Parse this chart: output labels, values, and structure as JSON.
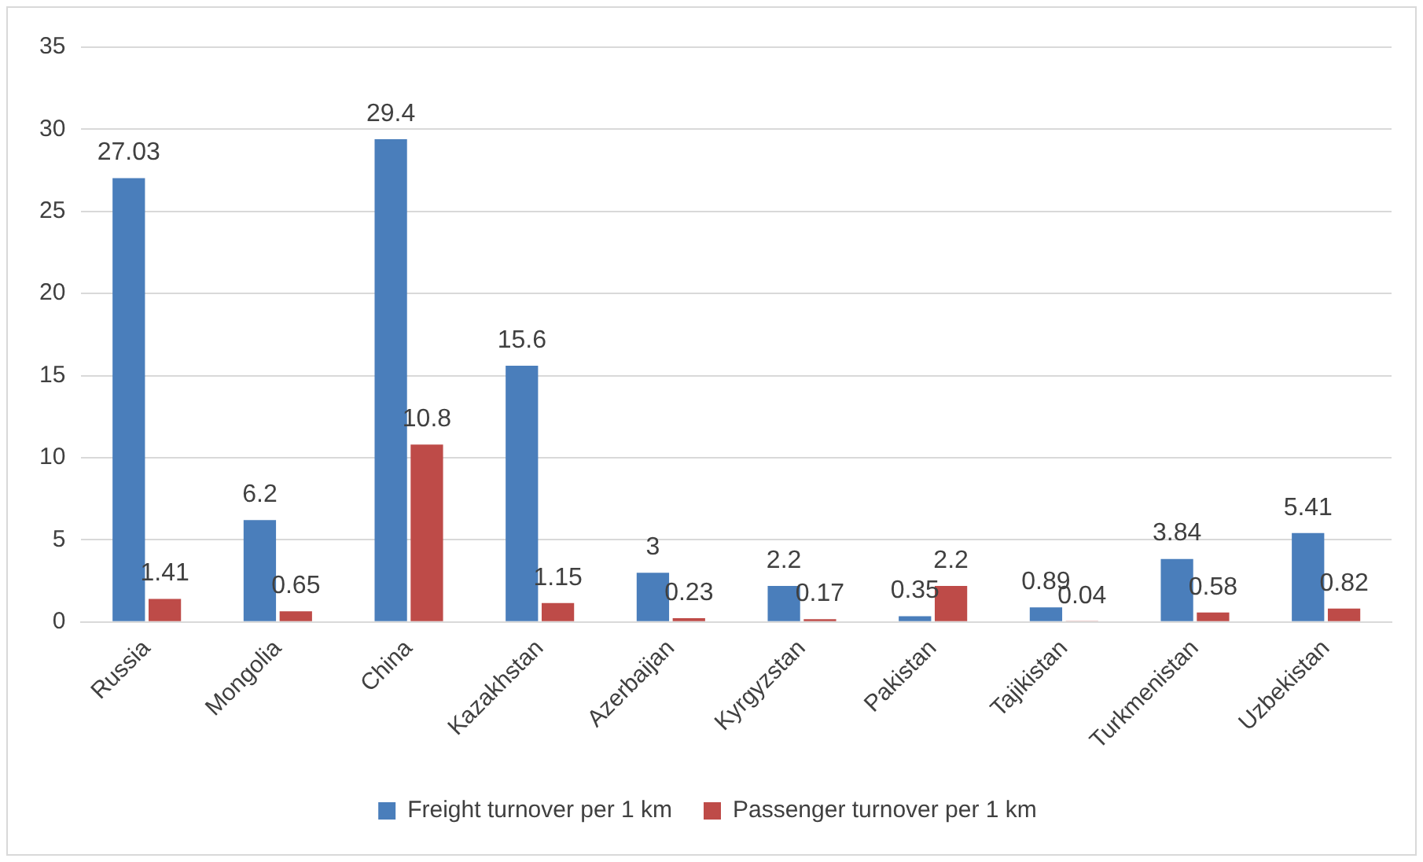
{
  "chart_data": {
    "type": "bar",
    "categories": [
      "Russia",
      "Mongolia",
      "China",
      "Kazakhstan",
      "Azerbaijan",
      "Kyrgyzstan",
      "Pakistan",
      "Tajikistan",
      "Turkmenistan",
      "Uzbekistan"
    ],
    "series": [
      {
        "name": "Freight turnover per 1 km",
        "color": "#4a7ebb",
        "values": [
          27.03,
          6.2,
          29.4,
          15.6,
          3,
          2.2,
          0.35,
          0.89,
          3.84,
          5.41
        ]
      },
      {
        "name": "Passenger turnover per 1 km",
        "color": "#be4b48",
        "values": [
          1.41,
          0.65,
          10.8,
          1.15,
          0.23,
          0.17,
          2.2,
          0.04,
          0.58,
          0.82
        ]
      }
    ],
    "ylim": [
      0,
      35
    ],
    "yticks": [
      0,
      5,
      10,
      15,
      20,
      25,
      30,
      35
    ],
    "grid": "y",
    "legend": "bottom",
    "data_labels": true
  }
}
